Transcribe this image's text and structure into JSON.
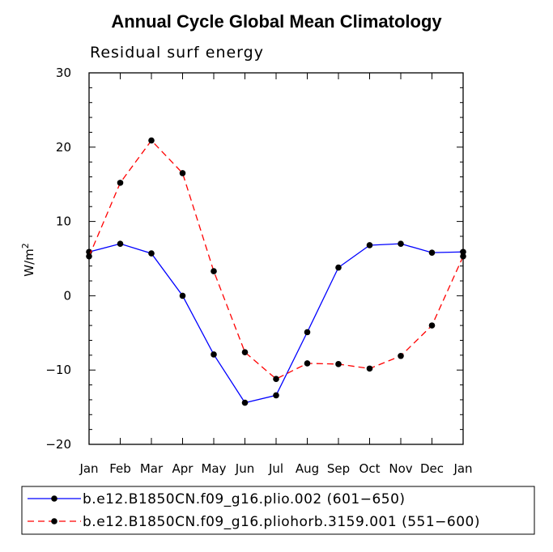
{
  "title": "Annual Cycle Global Mean Climatology",
  "chart_data": {
    "type": "line",
    "title": "Annual Cycle Global Mean Climatology",
    "subtitle": "Residual surf energy",
    "xlabel": "",
    "ylabel": "W/m",
    "ylabel_superscript": "2",
    "ylim": [
      -20,
      30
    ],
    "yticks": [
      "30",
      "20",
      "10",
      "0",
      "−10",
      "−20"
    ],
    "ytick_values": [
      30,
      20,
      10,
      0,
      -10,
      -20
    ],
    "categories": [
      "Jan",
      "Feb",
      "Mar",
      "Apr",
      "May",
      "Jun",
      "Jul",
      "Aug",
      "Sep",
      "Oct",
      "Nov",
      "Dec",
      "Jan"
    ],
    "series": [
      {
        "name": "b.e12.B1850CN.f09_g16.plio.002 (601−650)",
        "color": "#0000ff",
        "dash": "solid",
        "values": [
          5.9,
          7.0,
          5.7,
          0.0,
          -7.9,
          -14.4,
          -13.4,
          -4.9,
          3.8,
          6.8,
          7.0,
          5.8,
          5.9
        ]
      },
      {
        "name": "b.e12.B1850CN.f09_g16.pliohorb.3159.001 (551−600)",
        "color": "#ff0000",
        "dash": "dashed",
        "values": [
          5.3,
          15.2,
          20.9,
          16.5,
          3.3,
          -7.6,
          -11.2,
          -9.1,
          -9.2,
          -9.8,
          -8.1,
          -4.0,
          5.3
        ]
      }
    ],
    "legend_position": "bottom"
  }
}
